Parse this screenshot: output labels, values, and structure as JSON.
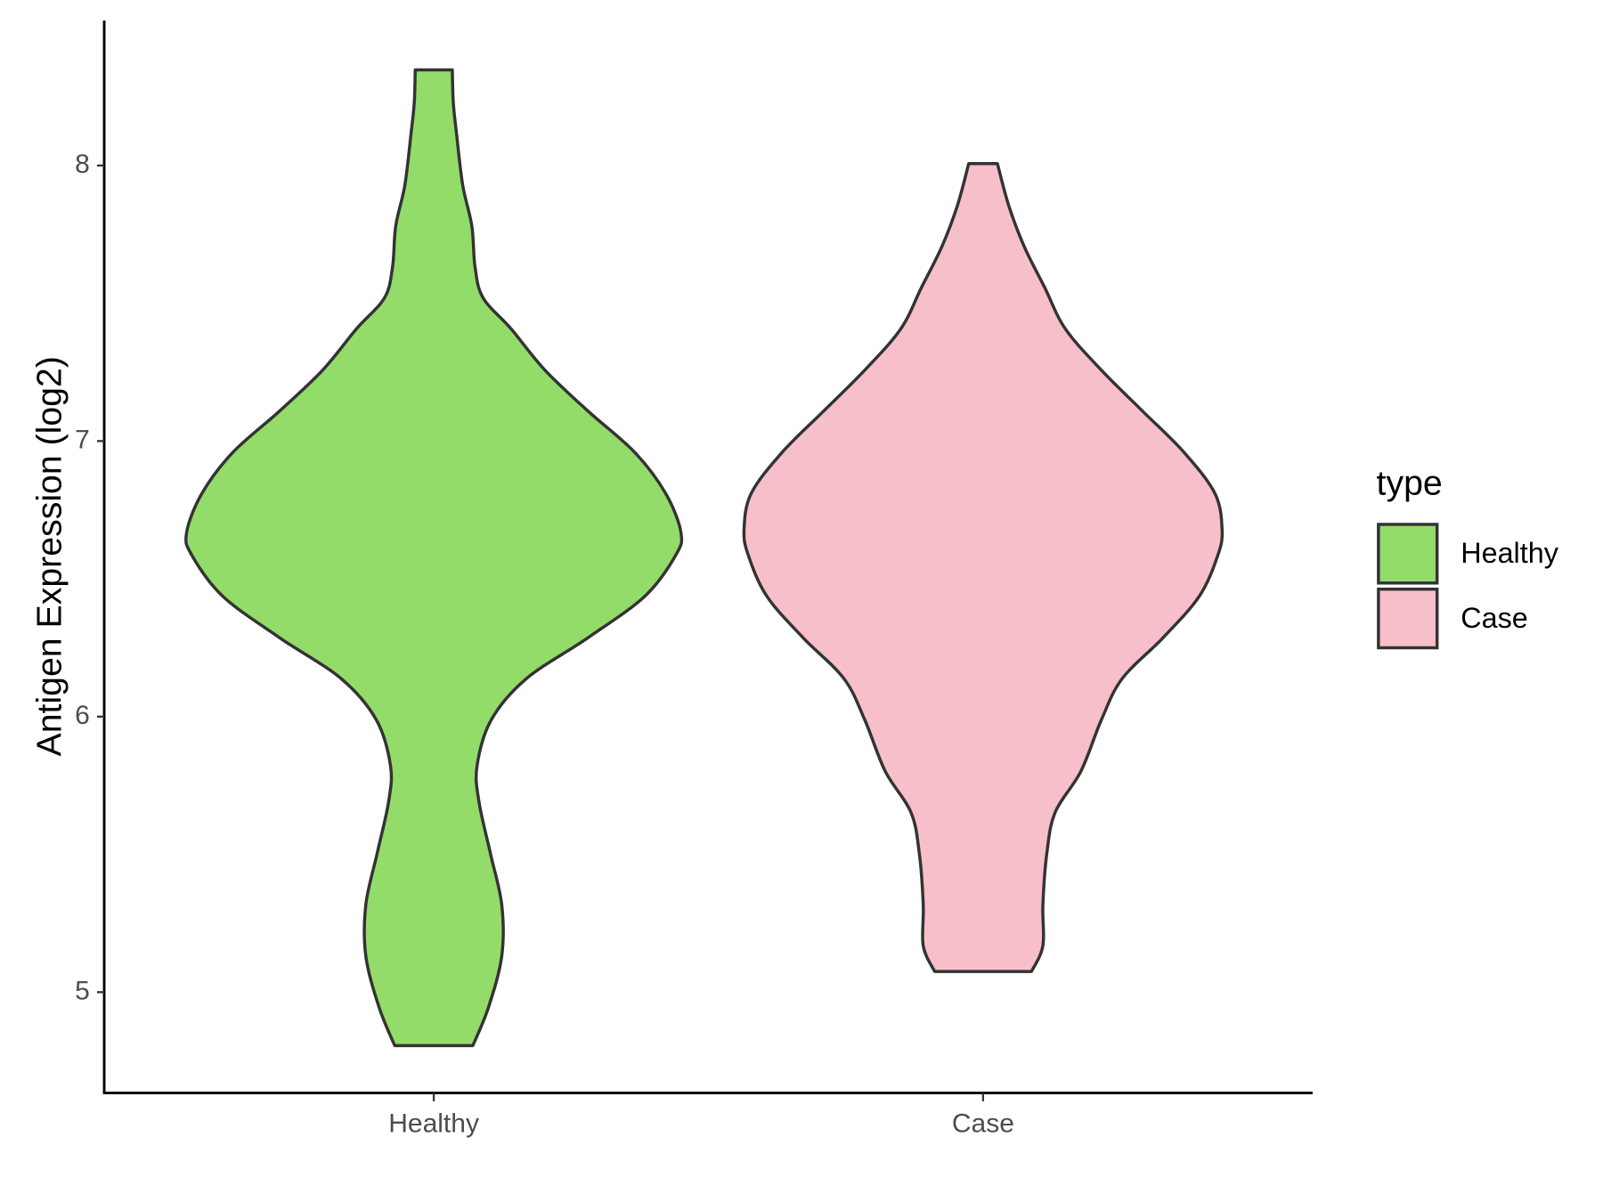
{
  "chart_data": {
    "type": "violin",
    "y_label": "Antigen Expression (log2)",
    "categories": [
      "Healthy",
      "Case"
    ],
    "legend_title": "type",
    "legend": "right",
    "ylim": [
      4.634,
      8.526
    ],
    "yticks": [
      5,
      6,
      7,
      8
    ],
    "series": [
      {
        "name": "Healthy",
        "color": "#93DC6A",
        "y": [
          4.806,
          4.944,
          5.131,
          5.317,
          5.504,
          5.69,
          5.821,
          5.989,
          6.138,
          6.287,
          6.437,
          6.586,
          6.668,
          6.81,
          6.959,
          7.108,
          7.257,
          7.407,
          7.519,
          7.631,
          7.78,
          7.929,
          8.116,
          8.228,
          8.347
        ],
        "density": [
          0.158,
          0.221,
          0.275,
          0.275,
          0.229,
          0.183,
          0.175,
          0.233,
          0.375,
          0.625,
          0.854,
          0.979,
          1,
          0.938,
          0.813,
          0.625,
          0.45,
          0.313,
          0.2,
          0.167,
          0.154,
          0.117,
          0.092,
          0.079,
          0.075
        ]
      },
      {
        "name": "Case",
        "color": "#F7BFCA",
        "y": [
          5.075,
          5.168,
          5.317,
          5.504,
          5.653,
          5.802,
          5.989,
          6.138,
          6.287,
          6.437,
          6.586,
          6.679,
          6.81,
          6.959,
          7.108,
          7.257,
          7.407,
          7.556,
          7.705,
          7.854,
          8.007
        ],
        "density": [
          0.196,
          0.242,
          0.242,
          0.258,
          0.292,
          0.396,
          0.479,
          0.563,
          0.729,
          0.875,
          0.95,
          0.967,
          0.938,
          0.813,
          0.646,
          0.479,
          0.333,
          0.25,
          0.167,
          0.104,
          0.058
        ]
      }
    ]
  }
}
